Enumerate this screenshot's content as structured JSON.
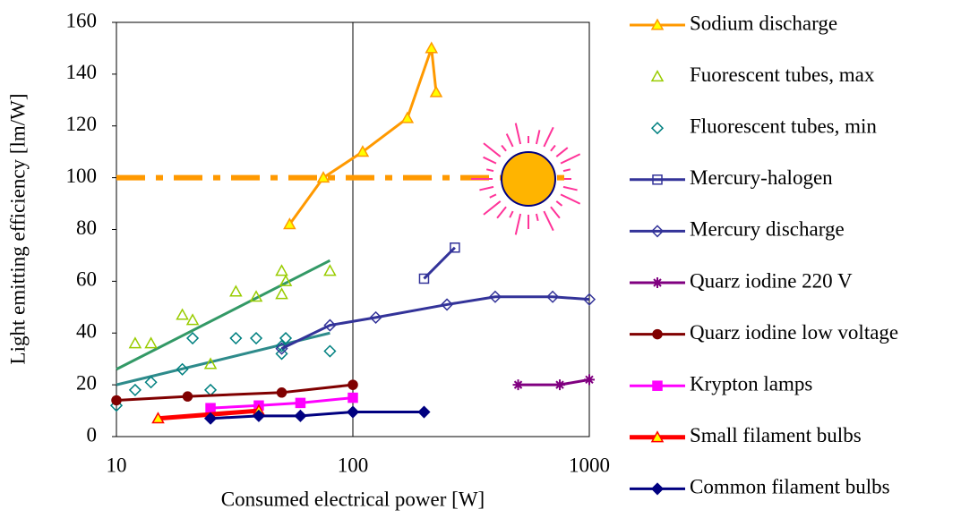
{
  "chart_data": {
    "type": "line",
    "x_label": "Consumed electrical power [W]",
    "y_label": "Light emitting efficiency  [lm/W]",
    "xscale": "log",
    "xlim": [
      10,
      1000
    ],
    "xticks": [
      10,
      100,
      1000
    ],
    "ylim": [
      0,
      160
    ],
    "yticks": [
      0,
      20,
      40,
      60,
      80,
      100,
      120,
      140,
      160
    ],
    "grid": "x",
    "legend": "right",
    "series": [
      {
        "name": "Sodium discharge",
        "color": "#ff9900",
        "marker": "triangle",
        "marker_fill": "#ffff00",
        "line": true,
        "x": [
          54,
          75,
          110,
          170,
          215,
          225
        ],
        "values": [
          82,
          100,
          110,
          123,
          150,
          133
        ]
      },
      {
        "name": "Fuorescent tubes, max",
        "color": "#99cc00",
        "marker": "triangle",
        "marker_fill": "none",
        "line": false,
        "x": [
          12,
          14,
          19,
          21,
          25,
          32,
          39,
          50,
          50,
          52,
          80
        ],
        "values": [
          36,
          36,
          47,
          45,
          28,
          56,
          54,
          64,
          55,
          60,
          64
        ]
      },
      {
        "name": "Fluorescent tubes, min",
        "color": "#008080",
        "marker": "diamond",
        "marker_fill": "none",
        "line": false,
        "x": [
          10,
          12,
          14,
          19,
          21,
          25,
          32,
          39,
          50,
          50,
          52,
          80
        ],
        "values": [
          12,
          18,
          21,
          26,
          38,
          18,
          38,
          38,
          32,
          35,
          38,
          33
        ]
      },
      {
        "name": "Mercury-halogen",
        "color": "#333399",
        "marker": "square",
        "marker_fill": "none",
        "line": true,
        "x": [
          200,
          270
        ],
        "values": [
          61,
          73
        ]
      },
      {
        "name": "Mercury discharge",
        "color": "#333399",
        "marker": "diamond",
        "marker_fill": "none",
        "line": true,
        "x": [
          50,
          80,
          125,
          250,
          400,
          700,
          1000
        ],
        "values": [
          34,
          43,
          46,
          51,
          54,
          54,
          53
        ]
      },
      {
        "name": "Quarz iodine 220 V",
        "color": "#800080",
        "marker": "star",
        "marker_fill": "none",
        "line": true,
        "x": [
          500,
          750,
          1000
        ],
        "values": [
          20,
          20,
          22
        ]
      },
      {
        "name": "Quarz iodine low voltage",
        "color": "#800000",
        "marker": "circle",
        "marker_fill": "#800000",
        "line": true,
        "x": [
          10,
          20,
          50,
          100
        ],
        "values": [
          14,
          15.5,
          17,
          20
        ]
      },
      {
        "name": "Krypton lamps",
        "color": "#ff00ff",
        "marker": "square",
        "marker_fill": "#ff00ff",
        "line": true,
        "x": [
          25,
          40,
          60,
          100
        ],
        "values": [
          11,
          12,
          13,
          15
        ]
      },
      {
        "name": "Small filament bulbs",
        "color": "#ff0000",
        "marker": "triangle",
        "marker_fill": "#ffff00",
        "line": true,
        "x": [
          15,
          40
        ],
        "values": [
          7,
          10
        ]
      },
      {
        "name": "Common filament bulbs",
        "color": "#000080",
        "marker": "diamond",
        "marker_fill": "#000080",
        "line": true,
        "x": [
          25,
          40,
          60,
          100,
          200
        ],
        "values": [
          7,
          8,
          8,
          9.5,
          9.5
        ]
      }
    ],
    "trendlines": [
      {
        "color": "#339966",
        "x": [
          10,
          80
        ],
        "values": [
          26,
          68
        ]
      },
      {
        "color": "#2e8b8b",
        "x": [
          10,
          80
        ],
        "values": [
          20,
          40
        ]
      }
    ],
    "reference_line": {
      "value": 100,
      "color": "#ff9900",
      "x": [
        10,
        1000
      ]
    }
  }
}
